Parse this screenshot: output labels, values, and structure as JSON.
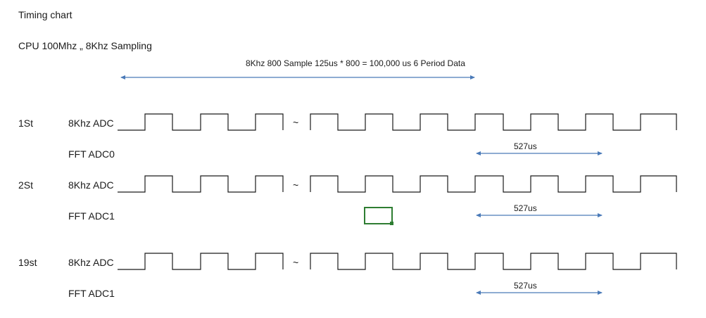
{
  "header": {
    "title": "Timing chart",
    "cpu_line": "CPU 100Mhz    „ 8Khz Sampling",
    "span_label": "8Khz 800 Sample  125us * 800 = 100,000 us  6 Period Data"
  },
  "rows": [
    {
      "index_label": "1St",
      "signal_label": "8Khz ADC",
      "fft_label": "FFT ADC0",
      "duration_label": "527us"
    },
    {
      "index_label": "2St",
      "signal_label": "8Khz ADC",
      "fft_label": "FFT ADC1",
      "duration_label": "527us"
    },
    {
      "index_label": "19st",
      "signal_label": "8Khz ADC",
      "fft_label": "FFT ADC1",
      "duration_label": "527us"
    }
  ],
  "break_symbol": "~",
  "colors": {
    "wave": "#1a1a1a",
    "arrow": "#4a7ab8",
    "cell_border": "#2e7d32"
  }
}
